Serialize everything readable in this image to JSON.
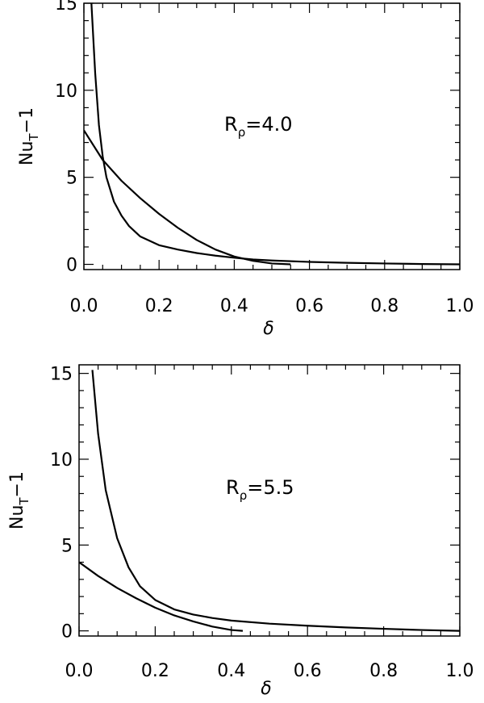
{
  "chart_data": [
    {
      "type": "line",
      "title": "",
      "xlabel": "δ",
      "ylabel": {
        "base": "Nu",
        "sub": "T",
        "suffix": "−1"
      },
      "annotation": {
        "base": "R",
        "sub": "ρ",
        "suffix": "=4.0"
      },
      "xlim": [
        0.0,
        1.0
      ],
      "ylim": [
        -0.3,
        15.0
      ],
      "xticks": [
        0.0,
        0.2,
        0.4,
        0.6,
        0.8,
        1.0
      ],
      "xtick_labels": [
        "0.0",
        "0.2",
        "0.4",
        "0.6",
        "0.8",
        "1.0"
      ],
      "yticks": [
        0,
        5,
        10,
        15
      ],
      "ytick_labels": [
        "0",
        "5",
        "10",
        "15"
      ],
      "grid": false,
      "series": [
        {
          "x": [
            0.02,
            0.03,
            0.04,
            0.05,
            0.06,
            0.08,
            0.1,
            0.12,
            0.15,
            0.2,
            0.25,
            0.3,
            0.35,
            0.4,
            0.45,
            0.5,
            0.6,
            0.7,
            0.8,
            0.9,
            1.0
          ],
          "y": [
            15.0,
            11.0,
            8.0,
            6.2,
            5.0,
            3.6,
            2.8,
            2.2,
            1.6,
            1.1,
            0.85,
            0.65,
            0.5,
            0.38,
            0.28,
            0.22,
            0.14,
            0.09,
            0.05,
            0.02,
            0.0
          ]
        },
        {
          "x": [
            0.0,
            0.05,
            0.1,
            0.15,
            0.2,
            0.25,
            0.3,
            0.35,
            0.4,
            0.45,
            0.5,
            0.55
          ],
          "y": [
            7.7,
            6.0,
            4.8,
            3.8,
            2.9,
            2.1,
            1.4,
            0.85,
            0.45,
            0.2,
            0.05,
            0.0
          ]
        }
      ]
    },
    {
      "type": "line",
      "title": "",
      "xlabel": "δ",
      "ylabel": {
        "base": "Nu",
        "sub": "T",
        "suffix": "−1"
      },
      "annotation": {
        "base": "R",
        "sub": "ρ",
        "suffix": "=5.5"
      },
      "xlim": [
        0.0,
        1.0
      ],
      "ylim": [
        -0.3,
        15.5
      ],
      "xticks": [
        0.0,
        0.2,
        0.4,
        0.6,
        0.8,
        1.0
      ],
      "xtick_labels": [
        "0.0",
        "0.2",
        "0.4",
        "0.6",
        "0.8",
        "1.0"
      ],
      "yticks": [
        0,
        5,
        10,
        15
      ],
      "ytick_labels": [
        "0",
        "5",
        "10",
        "15"
      ],
      "grid": false,
      "series": [
        {
          "x": [
            0.035,
            0.05,
            0.07,
            0.1,
            0.13,
            0.16,
            0.2,
            0.25,
            0.3,
            0.35,
            0.4,
            0.5,
            0.6,
            0.7,
            0.8,
            0.9,
            1.0
          ],
          "y": [
            15.2,
            11.5,
            8.2,
            5.4,
            3.7,
            2.6,
            1.8,
            1.25,
            0.95,
            0.75,
            0.6,
            0.42,
            0.3,
            0.2,
            0.12,
            0.05,
            0.0
          ]
        },
        {
          "x": [
            0.0,
            0.05,
            0.1,
            0.15,
            0.2,
            0.25,
            0.3,
            0.35,
            0.4,
            0.43
          ],
          "y": [
            4.0,
            3.2,
            2.5,
            1.9,
            1.35,
            0.9,
            0.55,
            0.25,
            0.05,
            0.0
          ]
        }
      ]
    }
  ]
}
